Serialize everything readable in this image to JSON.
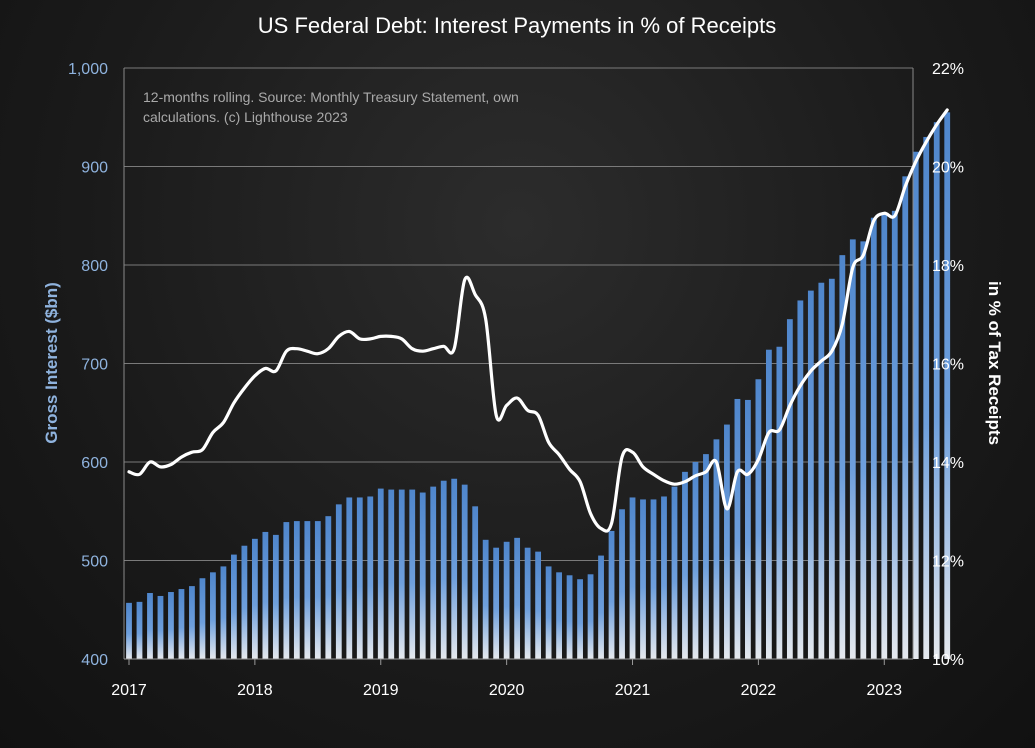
{
  "chart_data": {
    "type": "bar",
    "title": "US Federal Debt: Interest Payments in % of Receipts",
    "annotation": [
      "12-months rolling. Source: Monthly Treasury Statement, own",
      "calculations. (c) Lighthouse 2023"
    ],
    "ylabel": "Gross Interest ($bn)",
    "ylabel_right": "in % of Tax Receipts",
    "x_start": "2017-01",
    "x_tick_labels": [
      "2017",
      "2018",
      "2019",
      "2020",
      "2021",
      "2022",
      "2023"
    ],
    "y_tick_labels": [
      "400",
      "500",
      "600",
      "700",
      "800",
      "900",
      "1,000"
    ],
    "y2_tick_labels": [
      "10%",
      "12%",
      "14%",
      "16%",
      "18%",
      "20%",
      "22%"
    ],
    "ylim": [
      400,
      1000
    ],
    "y2lim": [
      10,
      22
    ],
    "grid": true,
    "colors": {
      "bar": "#5b8fd3",
      "line": "#ffffff",
      "grid": "#7a7a7a"
    },
    "series": [
      {
        "type": "bar",
        "axis": "left",
        "values": [
          457,
          458,
          467,
          464,
          468,
          471,
          474,
          482,
          488,
          494,
          506,
          515,
          522,
          529,
          526,
          539,
          540,
          540,
          540,
          545,
          557,
          564,
          564,
          565,
          573,
          572,
          572,
          572,
          569,
          575,
          581,
          583,
          577,
          555,
          521,
          513,
          519,
          523,
          513,
          509,
          494,
          488,
          485,
          481,
          486,
          505,
          530,
          552,
          564,
          562,
          562,
          565,
          575,
          590,
          600,
          608,
          623,
          638,
          664,
          663,
          684,
          714,
          717,
          745,
          764,
          774,
          782,
          786,
          810,
          826,
          824,
          848,
          852,
          855,
          890,
          915,
          930,
          945,
          955
        ]
      },
      {
        "type": "line",
        "axis": "right",
        "values": [
          13.8,
          13.75,
          14.0,
          13.9,
          13.95,
          14.1,
          14.2,
          14.25,
          14.6,
          14.8,
          15.2,
          15.5,
          15.75,
          15.9,
          15.85,
          16.25,
          16.3,
          16.25,
          16.2,
          16.3,
          16.55,
          16.65,
          16.5,
          16.5,
          16.55,
          16.55,
          16.5,
          16.3,
          16.25,
          16.3,
          16.35,
          16.3,
          17.7,
          17.4,
          16.9,
          14.95,
          15.15,
          15.3,
          15.05,
          14.95,
          14.4,
          14.15,
          13.85,
          13.6,
          12.95,
          12.65,
          12.75,
          14.1,
          14.2,
          13.9,
          13.75,
          13.62,
          13.55,
          13.6,
          13.72,
          13.8,
          14.0,
          13.05,
          13.8,
          13.75,
          14.05,
          14.6,
          14.65,
          15.15,
          15.55,
          15.85,
          16.05,
          16.25,
          16.8,
          17.95,
          18.2,
          18.9,
          19.05,
          19.0,
          19.6,
          20.1,
          20.5,
          20.85,
          21.15
        ]
      }
    ]
  }
}
